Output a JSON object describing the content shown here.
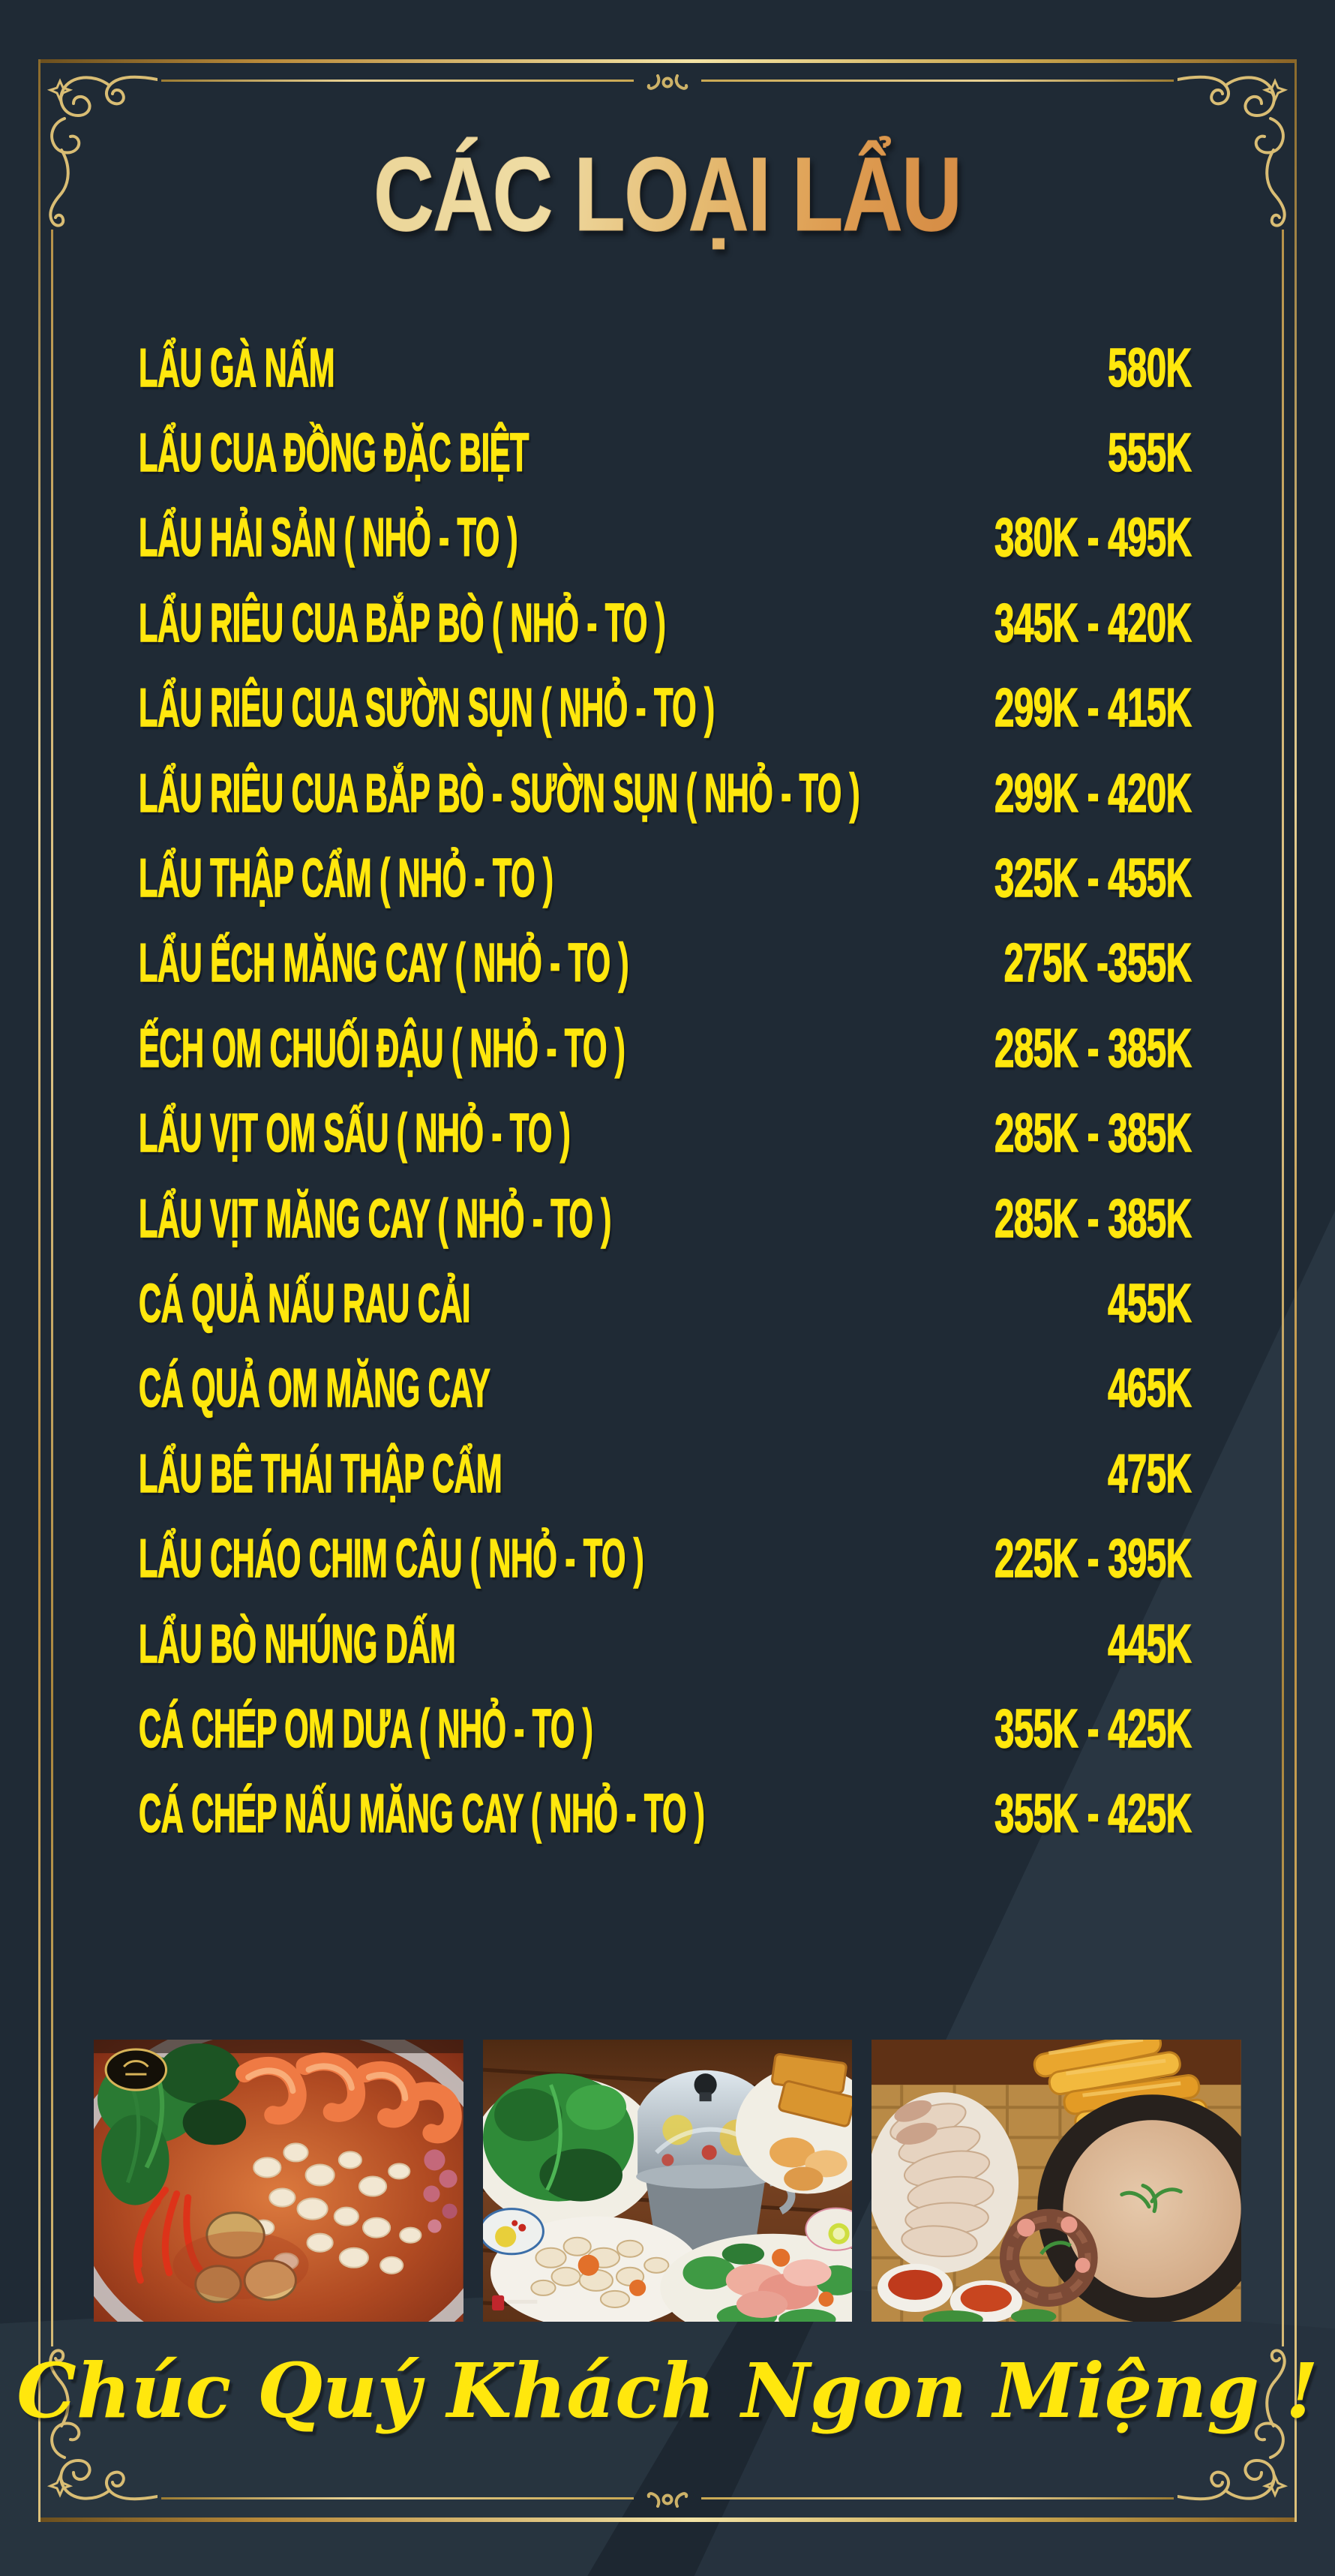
{
  "title": "CÁC LOẠI LẨU",
  "menu": {
    "items": [
      {
        "name": "LẨU GÀ NẤM",
        "price": "580K"
      },
      {
        "name": "LẨU CUA ĐỒNG ĐẶC BIỆT",
        "price": "555K"
      },
      {
        "name": "LẨU HẢI SẢN ( NHỎ - TO )",
        "price": "380K - 495K"
      },
      {
        "name": "LẨU RIÊU CUA BẮP BÒ ( NHỎ - TO )",
        "price": "345K - 420K"
      },
      {
        "name": "LẨU RIÊU CUA SƯỜN SỤN ( NHỎ - TO )",
        "price": "299K - 415K"
      },
      {
        "name": "LẨU RIÊU CUA BẮP BÒ - SƯỜN SỤN ( NHỎ - TO )",
        "price": "299K - 420K"
      },
      {
        "name": "LẨU THẬP CẨM ( NHỎ - TO )",
        "price": "325K - 455K"
      },
      {
        "name": "LẨU ẾCH MĂNG CAY ( NHỎ - TO )",
        "price": "275K -355K"
      },
      {
        "name": "ẾCH OM CHUỐI ĐẬU ( NHỎ - TO )",
        "price": "285K - 385K"
      },
      {
        "name": "LẨU VỊT OM SẤU ( NHỎ - TO )",
        "price": "285K - 385K"
      },
      {
        "name": "LẨU VỊT MĂNG CAY ( NHỎ - TO )",
        "price": "285K - 385K"
      },
      {
        "name": "CÁ QUẢ NẤU RAU CẢI",
        "price": "455K"
      },
      {
        "name": "CÁ QUẢ OM MĂNG CAY",
        "price": "465K"
      },
      {
        "name": "LẨU BÊ THÁI THẬP CẨM",
        "price": "475K"
      },
      {
        "name": "LẨU CHÁO CHIM CÂU ( NHỎ - TO )",
        "price": "225K - 395K"
      },
      {
        "name": "LẨU BÒ NHÚNG DẤM",
        "price": "445K"
      },
      {
        "name": "CÁ CHÉP OM DƯA ( NHỎ - TO )",
        "price": "355K - 425K"
      },
      {
        "name": "CÁ CHÉP NẤU MĂNG CAY ( NHỎ - TO )",
        "price": "355K - 425K"
      }
    ]
  },
  "photos": [
    {
      "label": "seafood hotpot with shrimp and clams"
    },
    {
      "label": "hotpot set with greens, mushrooms and sliced meat"
    },
    {
      "label": "feast platter with fried breadsticks and porridge pan"
    }
  ],
  "footer": {
    "message": "Chúc Quý Khách Ngon Miệng !"
  },
  "colors": {
    "background": "#1F2A35",
    "accent_yellow": "#FFE70D",
    "frame_gold": "#D8B869",
    "title_gold_light": "#ECD79B",
    "title_gold_dark": "#D78F47"
  }
}
